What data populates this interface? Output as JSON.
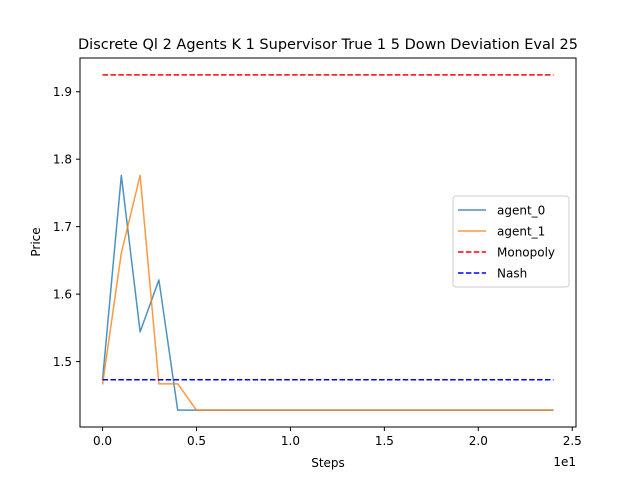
{
  "chart_data": {
    "type": "line",
    "title": "Discrete Ql 2 Agents K 1 Supervisor True 1 5 Down Deviation Eval 25",
    "xlabel": "Steps",
    "ylabel": "Price",
    "x_offset_label": "1e1",
    "xlim": [
      -1.2,
      25.2
    ],
    "ylim": [
      1.403,
      1.95
    ],
    "xticks": [
      0.0,
      0.5,
      1.0,
      1.5,
      2.0,
      2.5
    ],
    "xtick_labels": [
      "0.0",
      "0.5",
      "1.0",
      "1.5",
      "2.0",
      "2.5"
    ],
    "yticks": [
      1.5,
      1.6,
      1.7,
      1.8,
      1.9
    ],
    "ytick_labels": [
      "1.5",
      "1.6",
      "1.7",
      "1.8",
      "1.9"
    ],
    "grid": false,
    "legend_position": "center-right",
    "x": [
      0,
      1,
      2,
      3,
      4,
      5,
      6,
      7,
      8,
      9,
      10,
      11,
      12,
      13,
      14,
      15,
      16,
      17,
      18,
      19,
      20,
      21,
      22,
      23,
      24
    ],
    "series": [
      {
        "name": "agent_0",
        "color": "#1f77b4",
        "style": "solid",
        "values": [
          1.473,
          1.776,
          1.544,
          1.621,
          1.428,
          1.428,
          1.428,
          1.428,
          1.428,
          1.428,
          1.428,
          1.428,
          1.428,
          1.428,
          1.428,
          1.428,
          1.428,
          1.428,
          1.428,
          1.428,
          1.428,
          1.428,
          1.428,
          1.428,
          1.428
        ]
      },
      {
        "name": "agent_1",
        "color": "#ff7f0e",
        "style": "solid",
        "values": [
          1.466,
          1.661,
          1.776,
          1.467,
          1.467,
          1.428,
          1.428,
          1.428,
          1.428,
          1.428,
          1.428,
          1.428,
          1.428,
          1.428,
          1.428,
          1.428,
          1.428,
          1.428,
          1.428,
          1.428,
          1.428,
          1.428,
          1.428,
          1.428,
          1.428
        ]
      },
      {
        "name": "Monopoly",
        "color": "#ff0000",
        "style": "dashed",
        "values": [
          1.925,
          1.925,
          1.925,
          1.925,
          1.925,
          1.925,
          1.925,
          1.925,
          1.925,
          1.925,
          1.925,
          1.925,
          1.925,
          1.925,
          1.925,
          1.925,
          1.925,
          1.925,
          1.925,
          1.925,
          1.925,
          1.925,
          1.925,
          1.925,
          1.925
        ]
      },
      {
        "name": "Nash",
        "color": "#0000ff",
        "style": "dashed",
        "values": [
          1.473,
          1.473,
          1.473,
          1.473,
          1.473,
          1.473,
          1.473,
          1.473,
          1.473,
          1.473,
          1.473,
          1.473,
          1.473,
          1.473,
          1.473,
          1.473,
          1.473,
          1.473,
          1.473,
          1.473,
          1.473,
          1.473,
          1.473,
          1.473,
          1.473
        ]
      }
    ]
  }
}
